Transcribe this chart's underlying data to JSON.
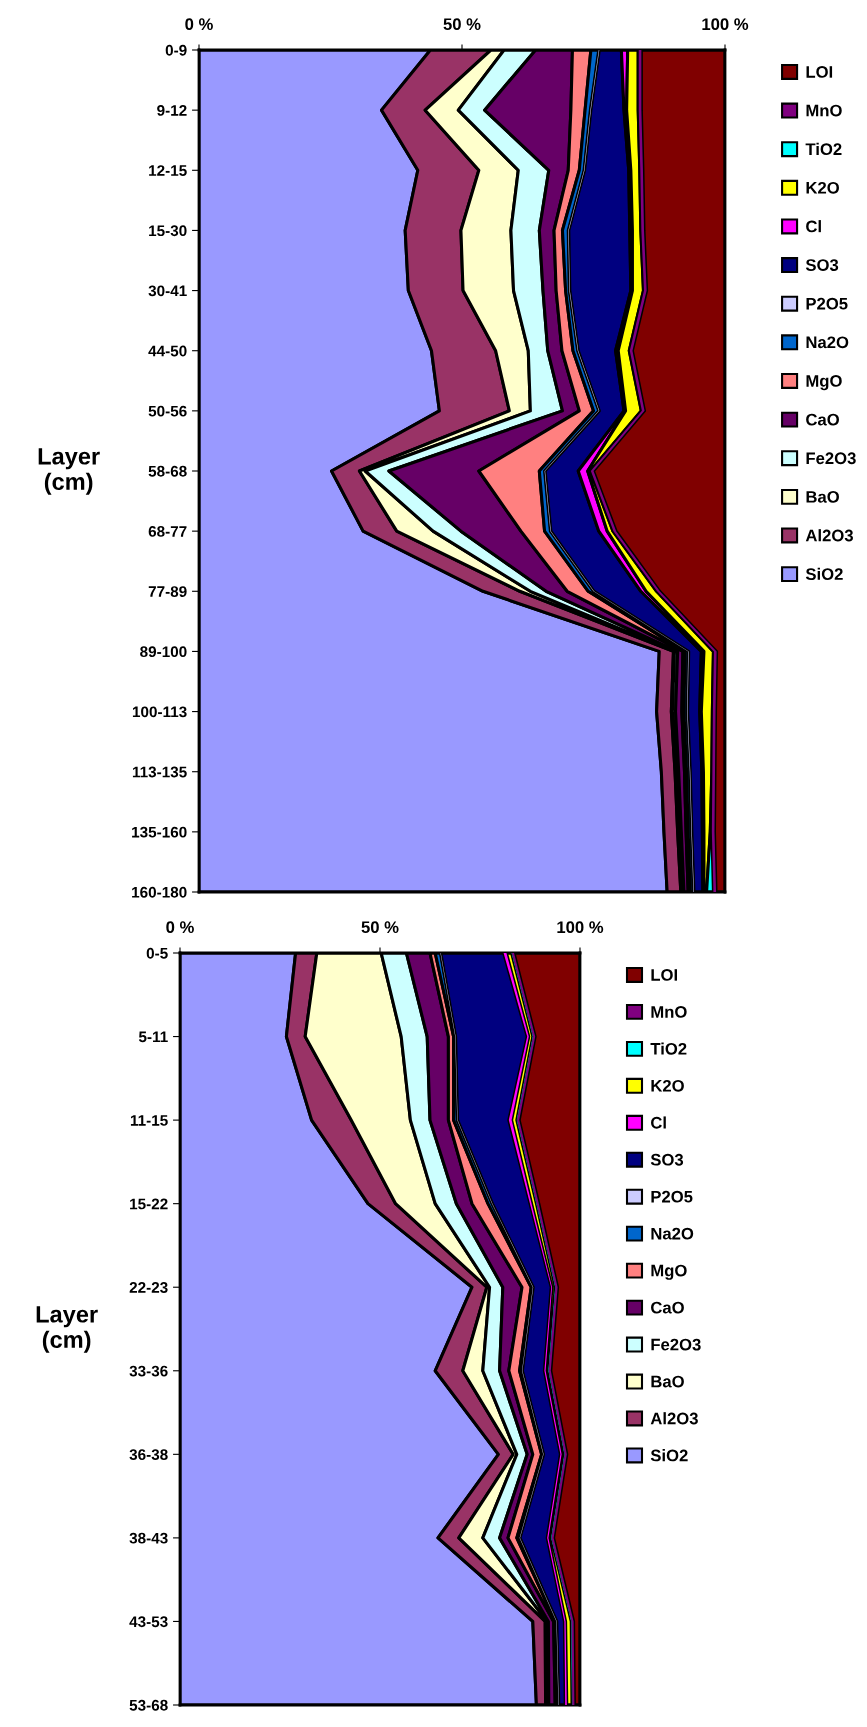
{
  "chart_data": [
    {
      "type": "area",
      "orientation": "horizontal",
      "stacked": true,
      "ylabel": "Layer\n(cm)",
      "legend": "right",
      "grid": false,
      "categories": [
        "0-9",
        "9-12",
        "12-15",
        "15-30",
        "30-41",
        "44-50",
        "50-56",
        "58-68",
        "68-77",
        "77-89",
        "89-100",
        "100-113",
        "113-135",
        "135-160",
        "160-180"
      ],
      "xlim": [
        0,
        100
      ],
      "xticks": [
        {
          "value": 0,
          "label": "0 %"
        },
        {
          "value": 50,
          "label": "50 %"
        },
        {
          "value": 100,
          "label": "100 %"
        }
      ],
      "series": [
        {
          "name": "SiO2",
          "color": "#9999ff",
          "values": [
            44,
            34.7,
            41.6,
            39.2,
            39.8,
            44.2,
            45.7,
            25.2,
            31.2,
            54,
            87.5,
            87,
            87.9,
            88.4,
            89
          ]
        },
        {
          "name": "Al2O3",
          "color": "#993366",
          "values": [
            11.5,
            8.3,
            11.6,
            10.6,
            10.4,
            12.2,
            13.3,
            5.3,
            6.4,
            7,
            2.7,
            2.8,
            2.6,
            2.6,
            2.6
          ]
        },
        {
          "name": "BaO",
          "color": "#ffffcc",
          "values": [
            2.5,
            6.3,
            7.5,
            9.5,
            9.6,
            6.2,
            4,
            1.1,
            6.9,
            2,
            0.2,
            0.2,
            0.2,
            0.2,
            0.2
          ]
        },
        {
          "name": "Fe2O3",
          "color": "#ccffff",
          "values": [
            6,
            5,
            5.8,
            5.4,
            5.6,
            3.7,
            6.1,
            4.5,
            5.3,
            3,
            0.6,
            0.6,
            0.5,
            0.5,
            0.4
          ]
        },
        {
          "name": "CaO",
          "color": "#660066",
          "values": [
            7,
            16.4,
            3.7,
            2.8,
            2.5,
            2.7,
            3.2,
            17.1,
            11.4,
            4,
            1,
            1.2,
            1.1,
            0.9,
            0.8
          ]
        },
        {
          "name": "MgO",
          "color": "#ff8080",
          "values": [
            3.5,
            2.7,
            2.1,
            1.6,
            1.8,
            2.1,
            2.7,
            11.5,
            4.5,
            4,
            0.4,
            0.4,
            0.4,
            0.4,
            0.4
          ]
        },
        {
          "name": "Na2O",
          "color": "#0066cc",
          "values": [
            1.5,
            1,
            0.9,
            1.1,
            0.7,
            0.9,
            1,
            1,
            1.1,
            1,
            0.6,
            0.6,
            0.6,
            0.6,
            0.6
          ]
        },
        {
          "name": "P2O5",
          "color": "#ccccff",
          "values": [
            0.1,
            0.1,
            0.1,
            0.1,
            0.1,
            0.1,
            0.1,
            0.1,
            0.1,
            0.1,
            0.1,
            0.1,
            0.1,
            0.1,
            0.1
          ]
        },
        {
          "name": "SO3",
          "color": "#000080",
          "values": [
            4.2,
            6.3,
            8.4,
            11.6,
            11.6,
            7.1,
            4.7,
            6.3,
            9.1,
            8.9,
            2.4,
            2.3,
            2.2,
            2,
            1.7
          ]
        },
        {
          "name": "Cl",
          "color": "#ff00ff",
          "values": [
            1.2,
            0.5,
            0.4,
            0.5,
            0.3,
            0.5,
            0.3,
            1.8,
            1.6,
            1,
            0.5,
            0.3,
            0.3,
            0.3,
            0.2
          ]
        },
        {
          "name": "K2O",
          "color": "#ffff00",
          "values": [
            2,
            2.2,
            1.7,
            1.6,
            2.1,
            2.1,
            3,
            0.5,
            1.1,
            2,
            1.8,
            2.1,
            1.6,
            1.2,
            0.5
          ]
        },
        {
          "name": "TiO2",
          "color": "#00ffff",
          "values": [
            0.1,
            0.1,
            0.1,
            0.1,
            0.1,
            0.1,
            0.1,
            0.1,
            0.1,
            0.1,
            0.1,
            0.1,
            0.1,
            0.3,
            1.3
          ]
        },
        {
          "name": "MnO",
          "color": "#800080",
          "values": [
            0.5,
            0.5,
            0.5,
            0.5,
            0.5,
            0.5,
            0.5,
            0.5,
            0.5,
            0.5,
            0.5,
            0.5,
            0.5,
            0.5,
            0.5
          ]
        },
        {
          "name": "LOI",
          "color": "#800000",
          "values": [
            15.9,
            15.9,
            15.6,
            15.4,
            14.9,
            17.6,
            15.3,
            25,
            20.7,
            12.4,
            1.6,
            1.8,
            1.9,
            2,
            1.7
          ]
        }
      ]
    },
    {
      "type": "area",
      "orientation": "horizontal",
      "stacked": true,
      "ylabel": "Layer\n(cm)",
      "legend": "right",
      "grid": false,
      "categories": [
        "0-5",
        "5-11",
        "11-15",
        "15-22",
        "22-23",
        "33-36",
        "36-38",
        "38-43",
        "43-53",
        "53-68"
      ],
      "xlim": [
        0,
        100
      ],
      "xticks": [
        {
          "value": 0,
          "label": "0 %"
        },
        {
          "value": 50,
          "label": "50 %"
        },
        {
          "value": 100,
          "label": "100 %"
        }
      ],
      "series": [
        {
          "name": "SiO2",
          "color": "#9999ff",
          "values": [
            28.9,
            26.6,
            32.9,
            47,
            73,
            63.8,
            79.6,
            64.5,
            88.2,
            89.1
          ]
        },
        {
          "name": "Al2O3",
          "color": "#993366",
          "values": [
            5.3,
            4.7,
            9.9,
            6.9,
            3.7,
            6.9,
            3.7,
            5.2,
            3.1,
            2.3
          ]
        },
        {
          "name": "BaO",
          "color": "#ffffcc",
          "values": [
            16.1,
            24,
            14.8,
            9.9,
            0.7,
            5,
            0.9,
            6,
            0.5,
            0.4
          ]
        },
        {
          "name": "Fe2O3",
          "color": "#ccffff",
          "values": [
            6.3,
            6.5,
            4.9,
            5.3,
            3.3,
            4.2,
            2.6,
            4.2,
            0.3,
            0.4
          ]
        },
        {
          "name": "CaO",
          "color": "#660066",
          "values": [
            5.9,
            5.3,
            4.6,
            3.9,
            4.8,
            2.3,
            1.4,
            2.1,
            1.3,
            1.6
          ]
        },
        {
          "name": "MgO",
          "color": "#ff8080",
          "values": [
            1.3,
            1.3,
            1.3,
            4,
            2.3,
            2.7,
            2.2,
            2.2,
            0.4,
            0.5
          ]
        },
        {
          "name": "Na2O",
          "color": "#0066cc",
          "values": [
            1.3,
            0.4,
            0.9,
            1,
            0.4,
            0.6,
            0.4,
            0.7,
            0.3,
            0.3
          ]
        },
        {
          "name": "P2O5",
          "color": "#ccccff",
          "values": [
            0.1,
            0.1,
            0.1,
            0.1,
            0.1,
            0.1,
            0.1,
            0.1,
            0.1,
            0.1
          ]
        },
        {
          "name": "SO3",
          "color": "#000080",
          "values": [
            15.7,
            17.9,
            12.8,
            9.4,
            4.5,
            5.5,
            4.2,
            6.8,
            1.9,
            1.6
          ]
        },
        {
          "name": "Cl",
          "color": "#ff00ff",
          "values": [
            0.7,
            0.4,
            0.7,
            0.4,
            0.2,
            0.3,
            0.3,
            0.3,
            0.3,
            0.4
          ]
        },
        {
          "name": "K2O",
          "color": "#ffff00",
          "values": [
            1.3,
            1,
            1.3,
            1.2,
            0.8,
            0.7,
            0.7,
            0.7,
            1.4,
            1.3
          ]
        },
        {
          "name": "TiO2",
          "color": "#00ffff",
          "values": [
            0.1,
            0.1,
            0.1,
            0.1,
            0.1,
            0.1,
            0.1,
            0.1,
            0.1,
            0.1
          ]
        },
        {
          "name": "MnO",
          "color": "#800080",
          "values": [
            0.5,
            0.5,
            0.5,
            0.5,
            0.5,
            0.5,
            0.5,
            0.5,
            0.5,
            0.5
          ]
        },
        {
          "name": "LOI",
          "color": "#800000",
          "values": [
            16.5,
            11.2,
            15.2,
            10.3,
            5.6,
            7.3,
            3.3,
            6.6,
            1.6,
            1.4
          ]
        }
      ]
    }
  ]
}
